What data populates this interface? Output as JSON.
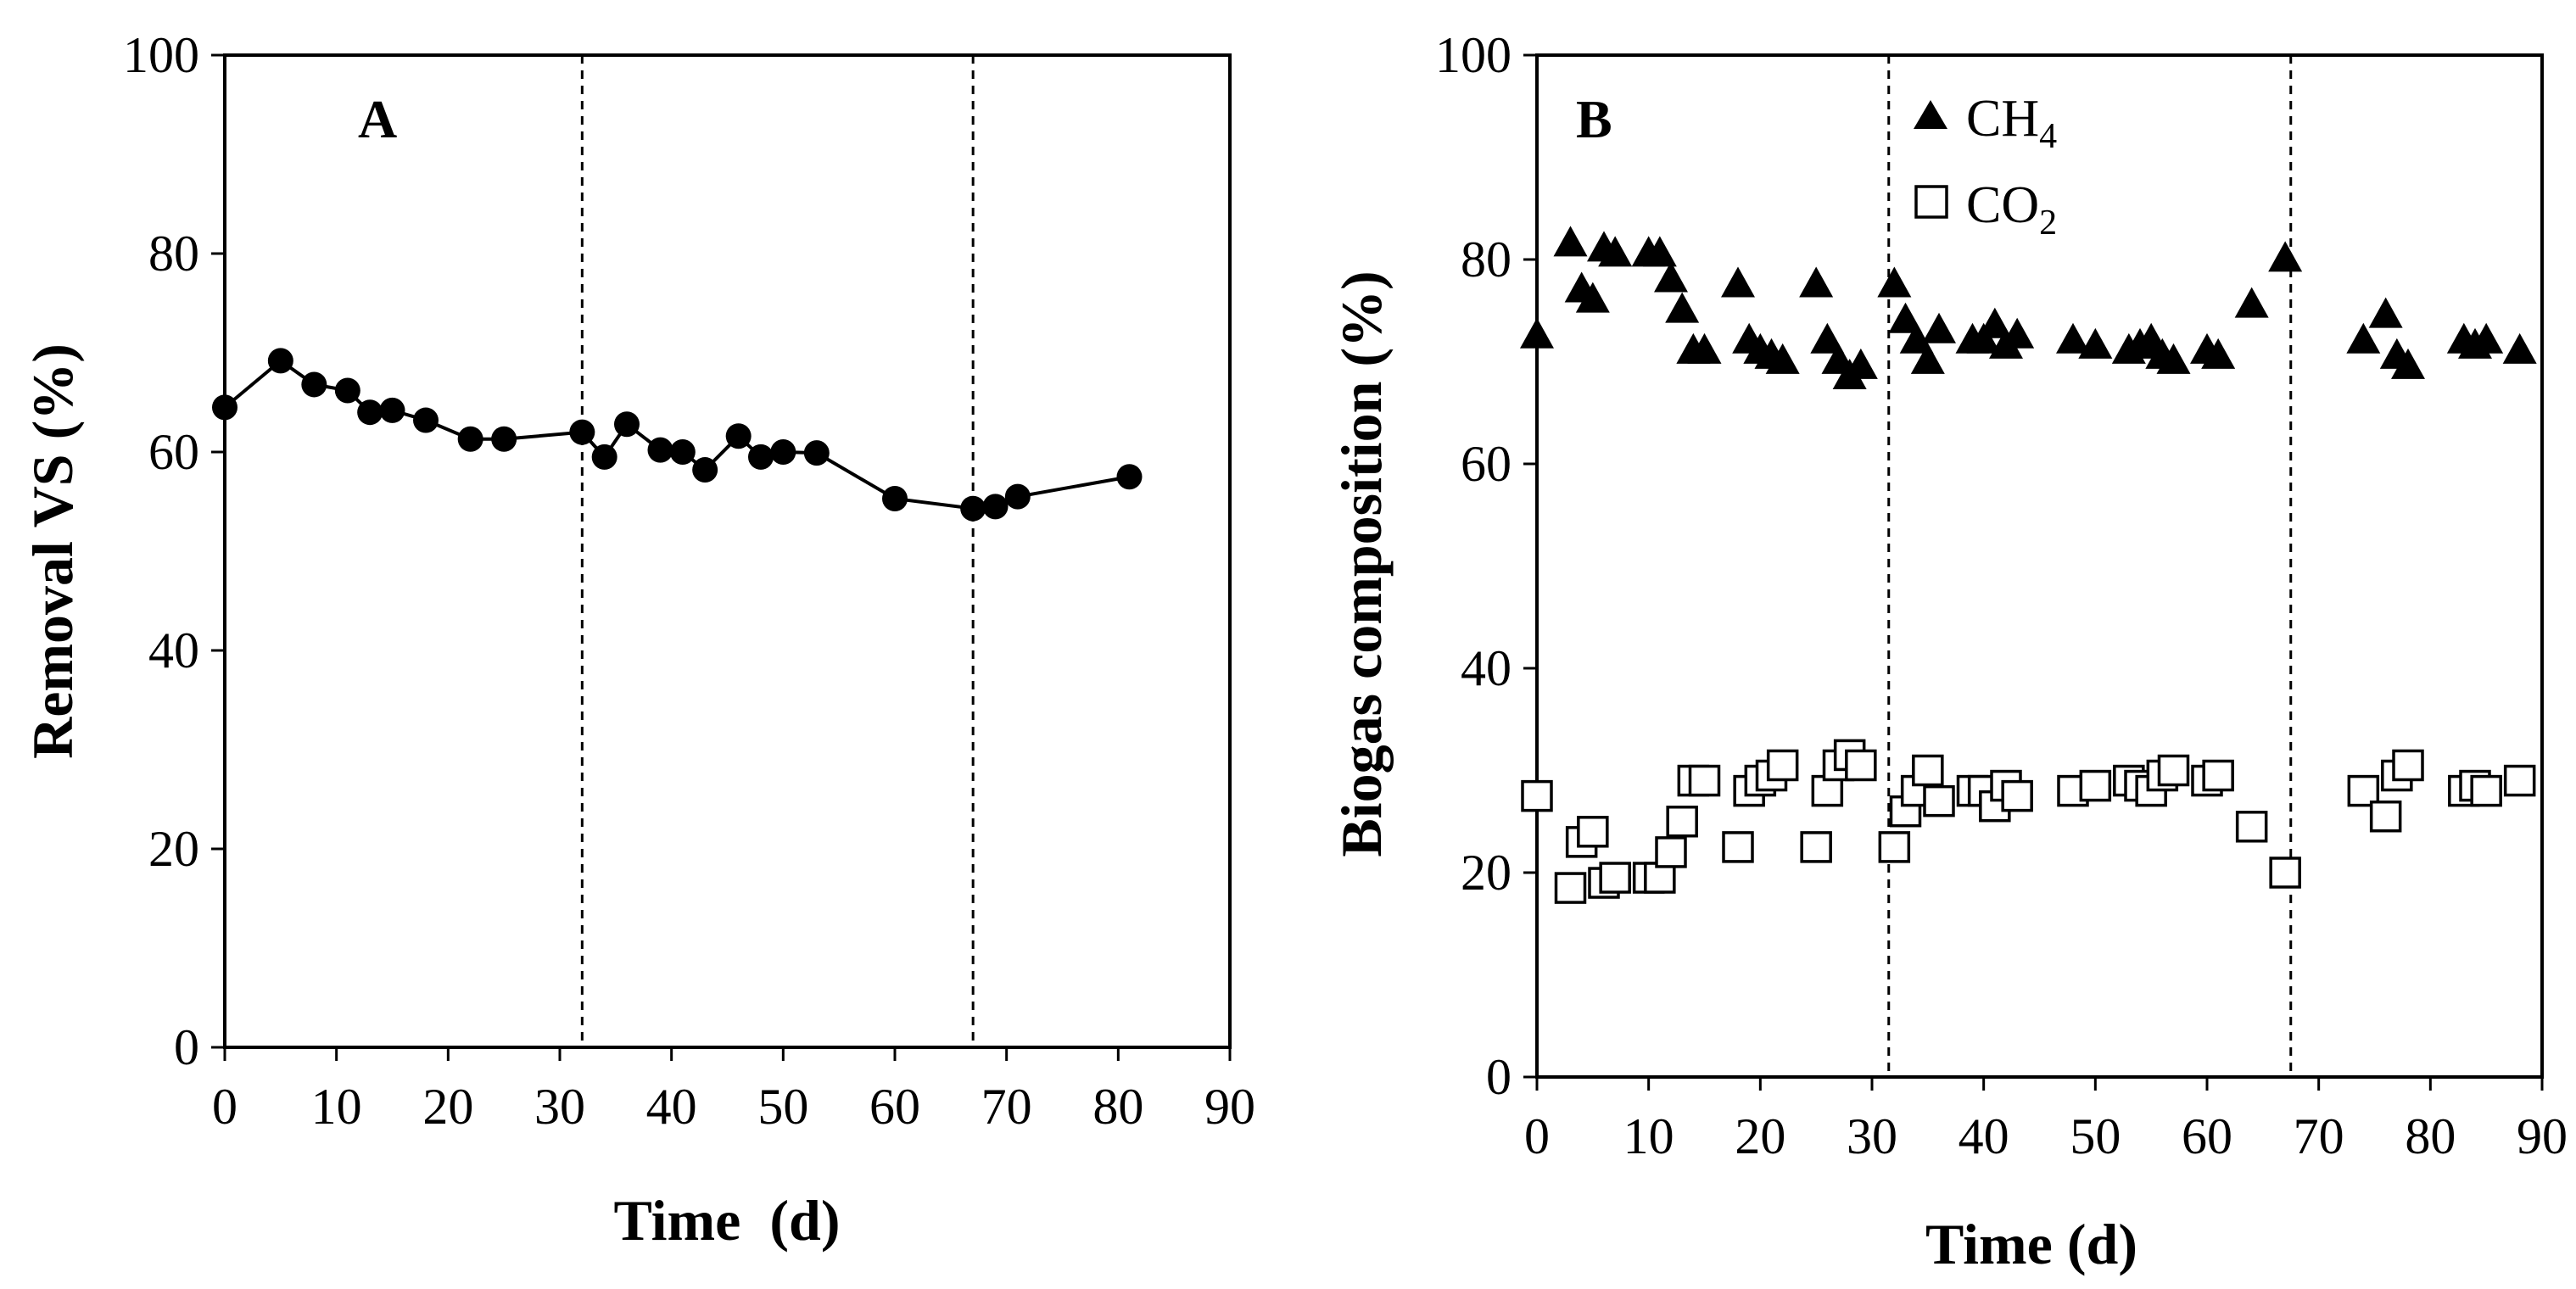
{
  "chart_data": [
    {
      "panel": "A",
      "type": "line",
      "panel_label": "A",
      "xlabel": "Time  (d)",
      "ylabel": "Removal VS (%)",
      "xlim": [
        0,
        90
      ],
      "ylim": [
        0,
        100
      ],
      "xticks": [
        0,
        10,
        20,
        30,
        40,
        50,
        60,
        70,
        80,
        90
      ],
      "yticks": [
        0,
        20,
        40,
        60,
        80,
        100
      ],
      "vlines": [
        32,
        67
      ],
      "series": [
        {
          "name": "Removal VS",
          "marker": "filled-circle",
          "x": [
            0,
            5,
            8,
            11,
            13,
            15,
            18,
            22,
            25,
            32,
            34,
            36,
            39,
            41,
            43,
            46,
            48,
            50,
            53,
            60,
            67,
            69,
            71,
            81
          ],
          "y": [
            64.5,
            69.2,
            66.8,
            66.2,
            64.0,
            64.2,
            63.2,
            61.3,
            61.3,
            62.0,
            59.5,
            62.8,
            60.2,
            60.0,
            58.2,
            61.6,
            59.5,
            60.0,
            59.9,
            55.3,
            54.3,
            54.5,
            55.5,
            57.5
          ]
        }
      ]
    },
    {
      "panel": "B",
      "type": "scatter",
      "panel_label": "B",
      "xlabel": "Time (d)",
      "ylabel": "Biogas composition (%)",
      "xlim": [
        0,
        90
      ],
      "ylim": [
        0,
        100
      ],
      "xticks": [
        0,
        10,
        20,
        30,
        40,
        50,
        60,
        70,
        80,
        90
      ],
      "yticks": [
        0,
        20,
        40,
        60,
        80,
        100
      ],
      "vlines": [
        31.5,
        67.5
      ],
      "legend": {
        "position": "top-left",
        "entries": [
          "CH4",
          "CO2"
        ]
      },
      "series": [
        {
          "name": "CH4",
          "label_main": "CH",
          "label_sub": "4",
          "marker": "filled-triangle",
          "x": [
            0,
            3,
            4,
            5,
            6,
            7,
            10,
            11,
            12,
            13,
            14,
            15,
            18,
            19,
            20,
            21,
            22,
            25,
            26,
            27,
            28,
            29,
            32,
            33,
            34,
            35,
            36,
            39,
            40,
            41,
            42,
            43,
            48,
            50,
            53,
            54,
            55,
            56,
            57,
            60,
            61,
            64,
            67,
            74,
            76,
            77,
            78,
            83,
            84,
            85,
            88
          ],
          "y": [
            72.5,
            81.5,
            77.0,
            76.0,
            81.0,
            80.5,
            80.5,
            80.5,
            78.0,
            75.0,
            71.0,
            71.0,
            77.5,
            72.0,
            71.0,
            70.5,
            70.0,
            77.5,
            72.0,
            70.0,
            68.5,
            69.5,
            77.5,
            74.0,
            72.0,
            70.0,
            73.0,
            72.0,
            72.0,
            73.5,
            71.5,
            72.5,
            72.0,
            71.5,
            71.0,
            71.5,
            72.0,
            70.5,
            70.0,
            71.0,
            70.5,
            75.5,
            80.0,
            72.0,
            74.5,
            70.5,
            69.5,
            72.0,
            71.5,
            72.0,
            71.0
          ]
        },
        {
          "name": "CO2",
          "label_main": "CO",
          "label_sub": "2",
          "marker": "open-square",
          "x": [
            0,
            3,
            4,
            5,
            6,
            7,
            10,
            11,
            12,
            13,
            14,
            15,
            18,
            19,
            20,
            21,
            22,
            25,
            26,
            27,
            28,
            29,
            32,
            33,
            34,
            35,
            36,
            39,
            40,
            41,
            42,
            43,
            48,
            50,
            53,
            54,
            55,
            56,
            57,
            60,
            61,
            64,
            67,
            74,
            76,
            77,
            78,
            83,
            84,
            85,
            88
          ],
          "y": [
            27.5,
            18.5,
            23.0,
            24.0,
            19.0,
            19.5,
            19.5,
            19.5,
            22.0,
            25.0,
            29.0,
            29.0,
            22.5,
            28.0,
            29.0,
            29.5,
            30.5,
            22.5,
            28.0,
            30.5,
            31.5,
            30.5,
            22.5,
            26.0,
            28.0,
            30.0,
            27.0,
            28.0,
            28.0,
            26.5,
            28.5,
            27.5,
            28.0,
            28.5,
            29.0,
            28.5,
            28.0,
            29.5,
            30.0,
            29.0,
            29.5,
            24.5,
            20.0,
            28.0,
            25.5,
            29.5,
            30.5,
            28.0,
            28.5,
            28.0,
            29.0
          ]
        }
      ]
    }
  ]
}
